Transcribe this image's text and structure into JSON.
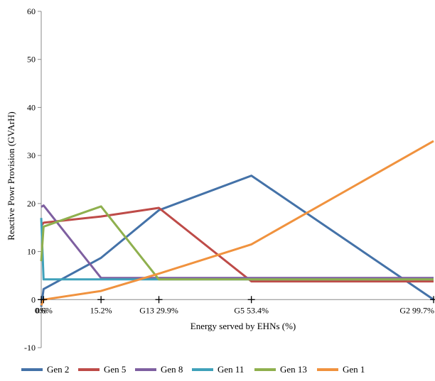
{
  "chart_data": {
    "type": "line",
    "xlabel": "Energy served by EHNs (%)",
    "ylabel": "Reactive Powr Provision (GVArH)",
    "x_tick_labels": [
      "0%",
      "0.6%",
      "15.2%",
      "G13 29.9%",
      "G5 53.4%",
      "G2 99.7%"
    ],
    "x": [
      0,
      0.6,
      15.2,
      29.9,
      53.4,
      99.7
    ],
    "ylim": [
      -10,
      60
    ],
    "y_ticks": [
      -10,
      0,
      10,
      20,
      30,
      40,
      50,
      60
    ],
    "grid": false,
    "legend_position": "bottom",
    "series": [
      {
        "name": "Gen 2",
        "color": "#4472A8",
        "values": [
          -1.5,
          2.2,
          8.7,
          18.6,
          25.8,
          0.0
        ]
      },
      {
        "name": "Gen 5",
        "color": "#BE4B48",
        "values": [
          15.3,
          16.0,
          17.3,
          19.1,
          3.8,
          3.8
        ]
      },
      {
        "name": "Gen 8",
        "color": "#7E5FA0",
        "values": [
          19.3,
          19.6,
          4.5,
          4.5,
          4.5,
          4.5
        ]
      },
      {
        "name": "Gen 11",
        "color": "#3FA1BA",
        "values": [
          17.0,
          4.2,
          4.2,
          4.2,
          4.2,
          4.2
        ]
      },
      {
        "name": "Gen 13",
        "color": "#8FB04E",
        "values": [
          8.0,
          15.2,
          19.4,
          4.2,
          4.2,
          4.2
        ]
      },
      {
        "name": "Gen 1",
        "color": "#F0923E",
        "values": [
          -1.2,
          0.0,
          1.8,
          5.4,
          11.5,
          33.0
        ]
      }
    ]
  }
}
